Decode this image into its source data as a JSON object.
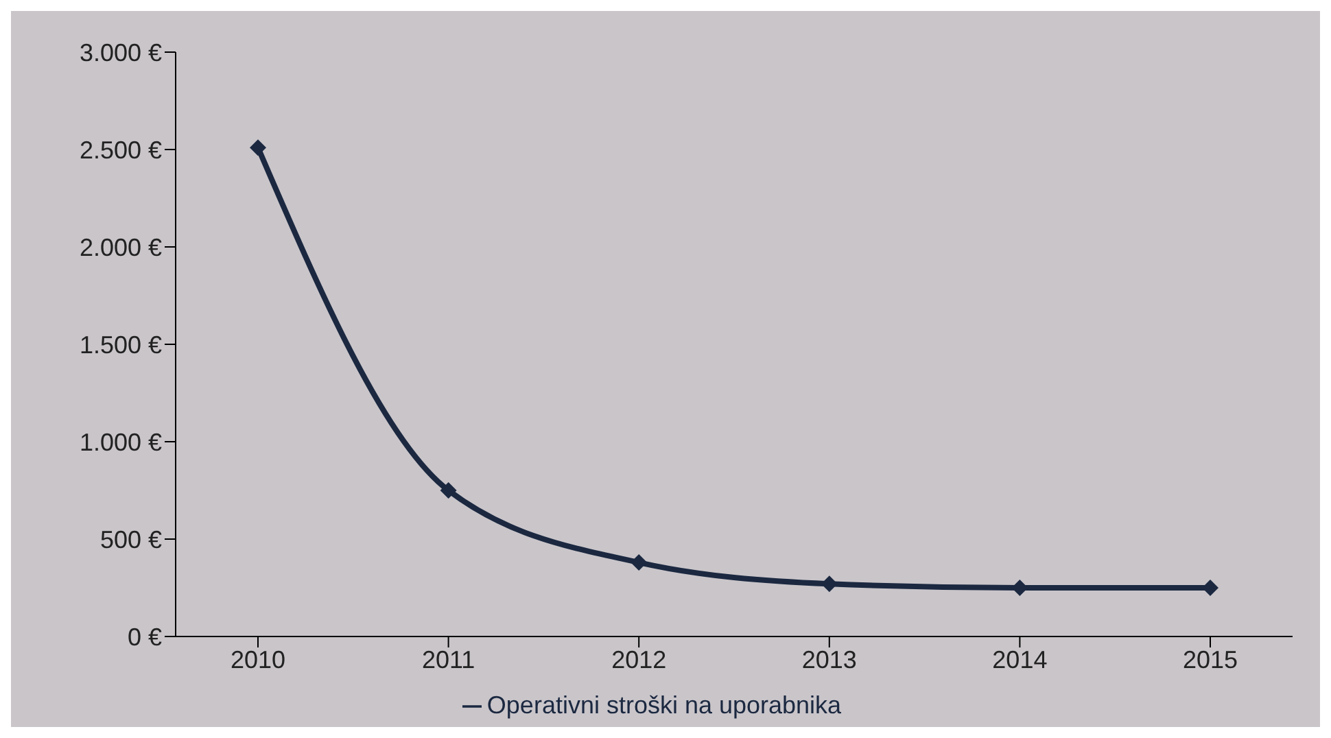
{
  "chart_data": {
    "type": "line",
    "categories": [
      "2010",
      "2011",
      "2012",
      "2013",
      "2014",
      "2015"
    ],
    "series": [
      {
        "name": "Operativni stroški na uporabnika",
        "color": "#1b2840",
        "values": [
          2510,
          750,
          380,
          270,
          250,
          250
        ]
      }
    ],
    "ylim": [
      0,
      3000
    ],
    "yticks": [
      {
        "value": 0,
        "label": "0 €"
      },
      {
        "value": 500,
        "label": "500 €"
      },
      {
        "value": 1000,
        "label": "1.000 €"
      },
      {
        "value": 1500,
        "label": "1.500 €"
      },
      {
        "value": 2000,
        "label": "2.000 €"
      },
      {
        "value": 2500,
        "label": "2.500 €"
      },
      {
        "value": 3000,
        "label": "3.000 €"
      }
    ],
    "marker": "diamond",
    "legend": "bottom"
  }
}
